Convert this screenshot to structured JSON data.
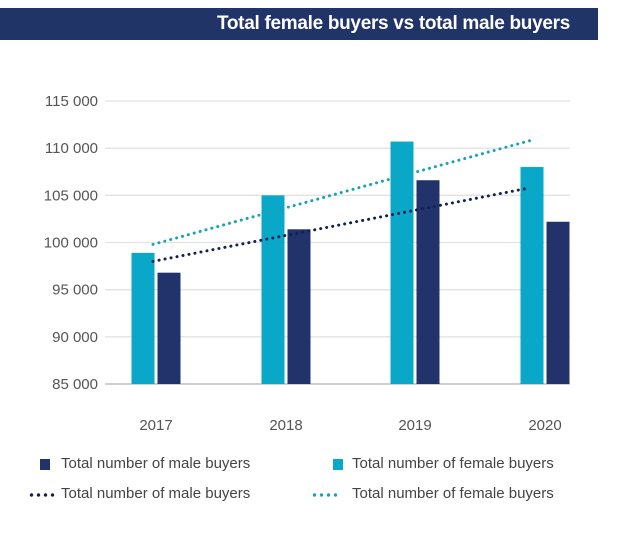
{
  "chart_data": {
    "type": "bar",
    "title": "Total female buyers vs total male buyers",
    "categories": [
      "2017",
      "2018",
      "2019",
      "2020"
    ],
    "ylim": [
      85000,
      115000
    ],
    "yticks": [
      85000,
      90000,
      95000,
      100000,
      105000,
      110000,
      115000
    ],
    "ytick_labels": [
      "85 000",
      "90 000",
      "95 000",
      "100 000",
      "105 000",
      "110 000",
      "115 000"
    ],
    "grid": true,
    "legend_placement": "bottom",
    "series": [
      {
        "name": "Total number of female buyers",
        "kind": "bar",
        "color": "#0aa8c8",
        "values": [
          98900,
          105000,
          110700,
          108000
        ]
      },
      {
        "name": "Total number of male buyers",
        "kind": "bar",
        "color": "#22336b",
        "values": [
          96800,
          101400,
          106600,
          102200
        ]
      },
      {
        "name": "Total number of male buyers",
        "kind": "trendline",
        "style": "dotted",
        "color": "#162050",
        "start": 98000,
        "end": 105800
      },
      {
        "name": "Total number of female buyers",
        "kind": "trendline",
        "style": "dotted",
        "color": "#17a3b2",
        "start": 99800,
        "end": 110800
      }
    ]
  },
  "legend": [
    {
      "label": "Total number of male buyers",
      "marker": "square",
      "color": "#22336b"
    },
    {
      "label": "Total number of female buyers",
      "marker": "square",
      "color": "#0aa8c8"
    },
    {
      "label": "Total number of male buyers",
      "marker": "dotted-line",
      "color": "#162050"
    },
    {
      "label": "Total number of female buyers",
      "marker": "dotted-line",
      "color": "#17a3b2"
    }
  ]
}
